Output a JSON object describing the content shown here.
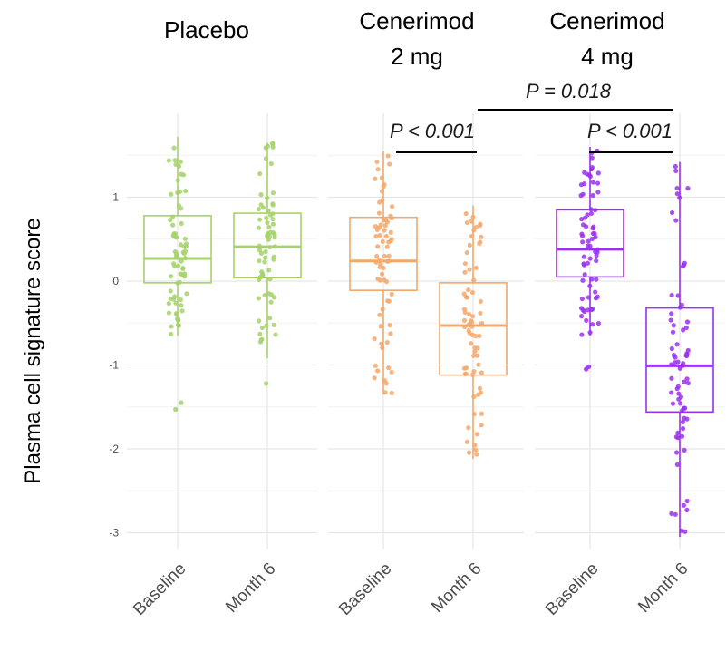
{
  "chart_data": {
    "type": "box",
    "ylabel": "Plasma cell signature score",
    "ylim": [
      -3.2,
      1.8
    ],
    "yticks": [
      1,
      0,
      -1,
      -2,
      -3
    ],
    "grid": true,
    "panels": [
      {
        "title_lines": [
          "Placebo"
        ],
        "color": "#a6d26a",
        "groups": [
          {
            "label": "Baseline",
            "median": 0.27,
            "q1": -0.02,
            "q3": 0.78,
            "whisker_low": -0.65,
            "whisker_high": 1.72,
            "outliers": [
              -1.45,
              -1.53
            ]
          },
          {
            "label": "Month 6",
            "median": 0.41,
            "q1": 0.04,
            "q3": 0.81,
            "whisker_low": -0.92,
            "whisker_high": 1.65,
            "outliers": [
              -1.22
            ]
          }
        ]
      },
      {
        "title_lines": [
          "Cenerimod",
          "2 mg"
        ],
        "color": "#f4a86a",
        "groups": [
          {
            "label": "Baseline",
            "median": 0.24,
            "q1": -0.11,
            "q3": 0.76,
            "whisker_low": -1.35,
            "whisker_high": 1.55,
            "outliers": []
          },
          {
            "label": "Month 6",
            "median": -0.53,
            "q1": -1.12,
            "q3": -0.02,
            "whisker_low": -2.12,
            "whisker_high": 0.9,
            "outliers": []
          }
        ]
      },
      {
        "title_lines": [
          "Cenerimod",
          "4 mg"
        ],
        "color": "#9b30ef",
        "groups": [
          {
            "label": "Baseline",
            "median": 0.38,
            "q1": 0.05,
            "q3": 0.85,
            "whisker_low": -0.65,
            "whisker_high": 1.6,
            "outliers": [
              -1.02,
              -1.05
            ]
          },
          {
            "label": "Month 6",
            "median": -1.01,
            "q1": -1.56,
            "q3": -0.32,
            "whisker_low": -3.05,
            "whisker_high": 1.42,
            "outliers": []
          }
        ]
      }
    ],
    "annotations": [
      {
        "text": "P < 0.001",
        "from": "Cenerimod 2 mg Baseline",
        "to": "Cenerimod 2 mg Month 6"
      },
      {
        "text": "P < 0.001",
        "from": "Cenerimod 4 mg Baseline",
        "to": "Cenerimod 4 mg Month 6"
      },
      {
        "text": "P = 0.018",
        "from": "Cenerimod 2 mg Month 6",
        "to": "Cenerimod 4 mg Month 6"
      }
    ]
  }
}
